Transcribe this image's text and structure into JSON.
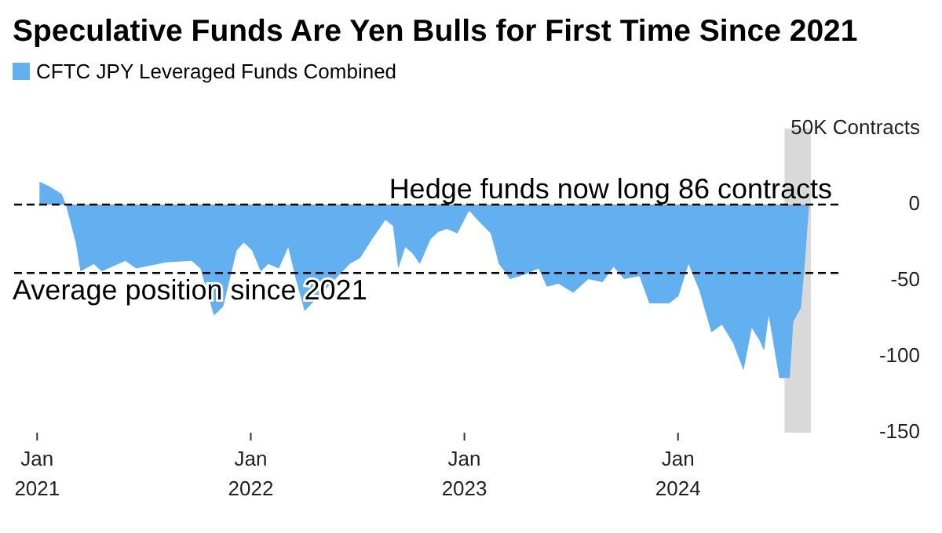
{
  "chart_data": {
    "type": "area",
    "title": "Speculative Funds Are Yen Bulls for First Time Since 2021",
    "x": [
      "2021-01-05",
      "2021-01-22",
      "2021-02-12",
      "2021-02-19",
      "2021-03-08",
      "2021-03-16",
      "2021-04-08",
      "2021-04-21",
      "2021-06-01",
      "2021-06-19",
      "2021-08-09",
      "2021-09-22",
      "2021-10-07",
      "2021-10-30",
      "2021-11-15",
      "2021-12-08",
      "2021-12-20",
      "2022-01-03",
      "2022-01-18",
      "2022-01-31",
      "2022-02-18",
      "2022-03-06",
      "2022-03-19",
      "2022-04-03",
      "2022-04-28",
      "2022-06-19",
      "2022-07-07",
      "2022-07-27",
      "2022-08-19",
      "2022-09-01",
      "2022-09-10",
      "2022-09-22",
      "2022-10-04",
      "2022-10-17",
      "2022-11-04",
      "2022-11-17",
      "2022-12-02",
      "2022-12-20",
      "2023-01-09",
      "2023-01-28",
      "2023-02-15",
      "2023-03-01",
      "2023-03-20",
      "2023-04-14",
      "2023-05-08",
      "2023-05-22",
      "2023-06-11",
      "2023-07-06",
      "2023-08-01",
      "2023-08-25",
      "2023-09-13",
      "2023-10-01",
      "2023-10-27",
      "2023-11-13",
      "2023-12-17",
      "2024-01-02",
      "2024-01-19",
      "2024-02-06",
      "2024-02-27",
      "2024-03-16",
      "2024-04-04",
      "2024-04-22",
      "2024-05-06",
      "2024-05-19",
      "2024-05-27",
      "2024-06-04",
      "2024-06-22",
      "2024-07-10",
      "2024-07-16",
      "2024-07-29",
      "2024-08-04",
      "2024-08-12"
    ],
    "series": [
      {
        "name": "CFTC JPY Leveraged Funds Combined",
        "color": "#62b0f0",
        "values": [
          15,
          12,
          7,
          0,
          -25,
          -44,
          -39,
          -44,
          -37,
          -42,
          -38,
          -37,
          -42,
          -73,
          -67,
          -30,
          -25,
          -30,
          -44,
          -39,
          -42,
          -28,
          -49,
          -70,
          -60,
          -39,
          -35,
          -23,
          -10,
          -14,
          -42,
          -28,
          -32,
          -39,
          -23,
          -18,
          -16,
          -19,
          -4,
          -12,
          -19,
          -39,
          -49,
          -46,
          -42,
          -54,
          -52,
          -58,
          -49,
          -51,
          -41,
          -49,
          -47,
          -65,
          -65,
          -60,
          -39,
          -56,
          -84,
          -79,
          -91,
          -109,
          -81,
          -89,
          -96,
          -73,
          -114,
          -114,
          -77,
          -68,
          -42,
          0
        ]
      }
    ],
    "xlim": [
      "2020-11-20",
      "2024-10-01"
    ],
    "xticks": [
      {
        "value": "2021-01-01",
        "label": "Jan 2021"
      },
      {
        "value": "2022-01-01",
        "label": "Jan 2022"
      },
      {
        "value": "2023-01-01",
        "label": "Jan 2023"
      },
      {
        "value": "2024-01-01",
        "label": "Jan 2024"
      }
    ],
    "ylim": [
      -150,
      50
    ],
    "yticks": [
      {
        "value": 50,
        "label": "50K Contracts"
      },
      0,
      -50,
      -100,
      -150
    ],
    "ref_lines": [
      {
        "axis": "y",
        "value": 0,
        "label": "Hedge funds now long 86 contracts",
        "line_style": "dashed"
      },
      {
        "axis": "y",
        "value": -45,
        "label": "Average position since 2021",
        "line_style": "dashed"
      }
    ],
    "bands": [
      {
        "axis": "x",
        "from": "2024-07-01",
        "to": "2024-08-15",
        "color": "#d9d9d9"
      }
    ],
    "legend": "top left",
    "grid": false
  }
}
